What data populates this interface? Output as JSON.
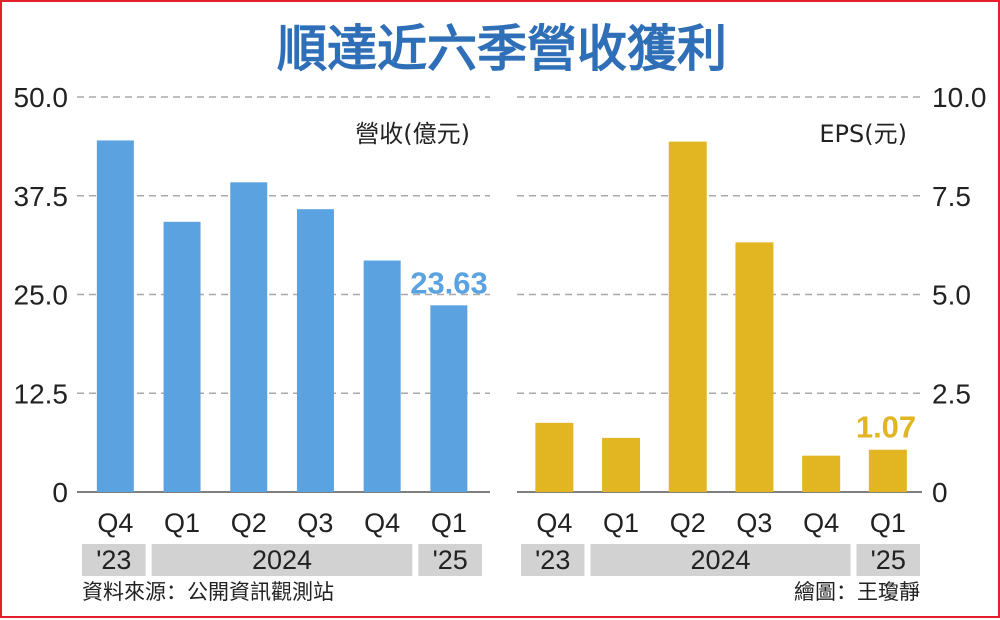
{
  "title": "順達近六季營收獲利",
  "source": "資料來源：公開資訊觀測站",
  "credit": "繪圖：王瓊靜",
  "colors": {
    "title": "#2f6fb7",
    "revenue_bar": "#5aa3e0",
    "eps_bar": "#e2b522",
    "grid": "#a8a8a8",
    "year_band": "#d2d2d2",
    "frame": "#e3202b"
  },
  "chart_data": [
    {
      "type": "bar",
      "unit_label": "營收(億元)",
      "categories": [
        "Q4",
        "Q1",
        "Q2",
        "Q3",
        "Q4",
        "Q1"
      ],
      "year_groups": [
        {
          "label": "'23",
          "span": 1
        },
        {
          "label": "2024",
          "span": 4
        },
        {
          "label": "'25",
          "span": 1
        }
      ],
      "values": [
        44.5,
        34.2,
        39.2,
        35.8,
        29.3,
        23.63
      ],
      "ylim": [
        0,
        50
      ],
      "yticks": [
        "0",
        "12.5",
        "25.0",
        "37.5",
        "50.0"
      ],
      "highlight_label": "23.63",
      "axis_side": "left",
      "grid": true
    },
    {
      "type": "bar",
      "unit_label": "EPS(元)",
      "categories": [
        "Q4",
        "Q1",
        "Q2",
        "Q3",
        "Q4",
        "Q1"
      ],
      "year_groups": [
        {
          "label": "'23",
          "span": 1
        },
        {
          "label": "2024",
          "span": 4
        },
        {
          "label": "'25",
          "span": 1
        }
      ],
      "values": [
        1.75,
        1.37,
        8.87,
        6.32,
        0.92,
        1.07
      ],
      "ylim": [
        0,
        10
      ],
      "yticks": [
        "0",
        "2.5",
        "5.0",
        "7.5",
        "10.0"
      ],
      "highlight_label": "1.07",
      "axis_side": "right",
      "grid": true
    }
  ]
}
